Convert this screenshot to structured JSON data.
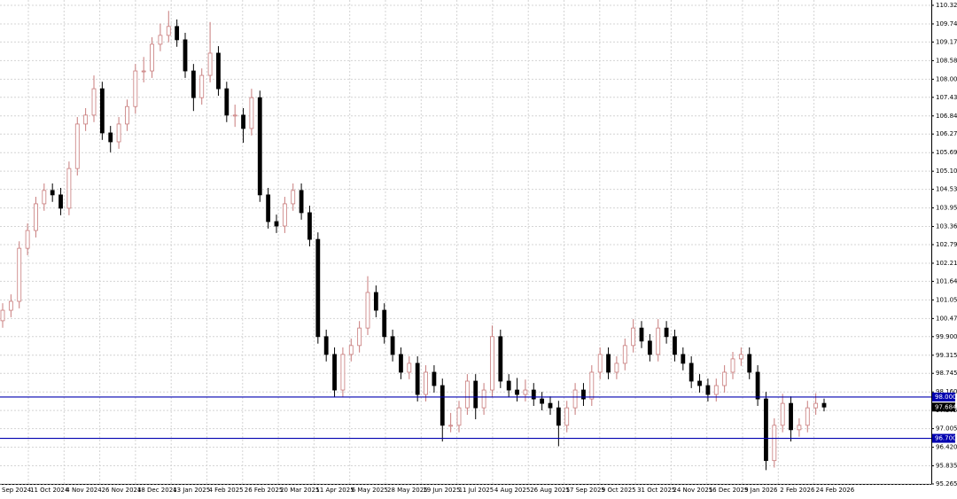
{
  "chart_data": {
    "type": "candlestick",
    "up_color": "#c87b7b",
    "down_color": "#000000",
    "grid": true,
    "ylim": [
      95.265,
      110.325
    ],
    "yticks": [
      110.325,
      {
        "value": 109.74,
        "label": "109.740"
      },
      {
        "value": 109.17,
        "label": "109.170"
      },
      108.585,
      {
        "value": 108,
        "label": "108.000"
      },
      {
        "value": 107.43,
        "label": "107.430"
      },
      106.845,
      106.275,
      {
        "value": 105.69,
        "label": "105.690"
      },
      105.105,
      104.535,
      {
        "value": 103.95,
        "label": "103.950"
      },
      103.365,
      102.795,
      {
        "value": 102.21,
        "label": "102.210"
      },
      {
        "value": 101.64,
        "label": "101.640"
      },
      101.055,
      {
        "value": 100.47,
        "label": "100.470"
      },
      {
        "value": 99.9,
        "label": "99.900"
      },
      99.315,
      98.745,
      {
        "value": 98.16,
        "label": "98.160"
      },
      97.575,
      97.005,
      {
        "value": 96.42,
        "label": "96.420"
      },
      95.835,
      95.265
    ],
    "xlabels": [
      "Sep 2024",
      "11 Oct 2024",
      "4 Nov 2024",
      "26 Nov 2024",
      "18 Dec 2024",
      "13 Jan 2025",
      "4 Feb 2025",
      "26 Feb 2025",
      "20 Mar 2025",
      "11 Apr 2025",
      "6 May 2025",
      "28 May 2025",
      "19 Jun 2025",
      "11 Jul 2025",
      "4 Aug 2025",
      "26 Aug 2025",
      "17 Sep 2025",
      "9 Oct 2025",
      "31 Oct 2025",
      "24 Nov 2025",
      "16 Dec 2025",
      "9 Jan 2026",
      "2 Feb 2026",
      "24 Feb 2026"
    ],
    "hlines": [
      {
        "value": 98,
        "label": "98.000",
        "color": "#0000b0"
      },
      {
        "value": 96.7,
        "label": "96.700",
        "color": "#0000b0"
      }
    ],
    "current_price": {
      "value": 97.684,
      "label": "97.684",
      "color": "#000000"
    },
    "open": [
      100.4,
      100.73,
      101.01,
      102.68,
      103.24,
      104.08,
      104.5,
      104.36,
      103.94,
      105.19,
      106.59,
      106.87,
      107.7,
      106.31,
      106.03,
      106.59,
      107.14,
      108.26,
      108.26,
      109.1,
      109.38,
      109.66,
      109.24,
      108.26,
      107.42,
      108.12,
      108.82,
      107.7,
      106.87,
      106.87,
      106.45,
      107.42,
      104.36,
      103.52,
      103.38,
      104.08,
      104.5,
      103.8,
      102.96,
      99.9,
      99.34,
      98.22,
      99.34,
      99.62,
      100.17,
      101.29,
      100.73,
      99.9,
      99.34,
      98.78,
      99.06,
      98.08,
      98.78,
      98.36,
      97.11,
      97.11,
      97.66,
      98.5,
      97.66,
      98.22,
      99.9,
      98.5,
      98.22,
      98.08,
      98.22,
      97.94,
      97.8,
      97.66,
      97.11,
      97.66,
      98.22,
      97.94,
      98.78,
      99.34,
      98.78,
      99.06,
      99.62,
      100.17,
      99.76,
      99.34,
      100.17,
      99.9,
      99.34,
      99.06,
      98.5,
      98.36,
      98.08,
      98.36,
      98.78,
      99.2,
      99.34,
      98.78,
      97.94,
      96.0,
      97.11,
      97.8,
      96.97,
      97.11,
      97.66,
      97.8
    ],
    "high": [
      100.95,
      101.23,
      102.9,
      103.46,
      104.3,
      104.72,
      104.72,
      104.58,
      105.41,
      106.81,
      107.09,
      108.12,
      107.92,
      106.53,
      106.81,
      107.36,
      108.48,
      108.7,
      109.32,
      109.75,
      110.15,
      109.88,
      109.46,
      108.48,
      108.34,
      109.8,
      109.04,
      107.92,
      107.2,
      107.09,
      107.7,
      107.64,
      104.58,
      103.74,
      104.3,
      104.72,
      104.72,
      104.02,
      103.18,
      100.12,
      99.56,
      99.56,
      99.84,
      100.39,
      101.8,
      101.51,
      100.95,
      100.12,
      99.56,
      99.28,
      99.28,
      99.0,
      99.0,
      98.58,
      97.5,
      97.88,
      98.72,
      98.72,
      98.44,
      100.25,
      100.12,
      98.72,
      98.6,
      98.55,
      98.44,
      98.16,
      98.02,
      97.88,
      97.88,
      98.44,
      98.44,
      99.0,
      99.56,
      99.56,
      99.28,
      99.84,
      100.45,
      100.39,
      99.98,
      100.45,
      100.39,
      100.12,
      99.56,
      99.28,
      98.72,
      98.58,
      98.58,
      99.0,
      99.42,
      99.56,
      99.56,
      99.0,
      98.16,
      97.33,
      98.1,
      98.02,
      97.33,
      97.88,
      98.12,
      97.95
    ],
    "low": [
      100.18,
      100.51,
      100.79,
      102.46,
      103.02,
      103.86,
      104.14,
      103.72,
      103.72,
      104.97,
      106.37,
      106.65,
      106.09,
      105.7,
      105.81,
      106.37,
      106.92,
      107.9,
      108.04,
      108.88,
      109.16,
      109.02,
      108.04,
      107.0,
      107.2,
      107.9,
      107.48,
      106.65,
      106.5,
      106.0,
      106.23,
      104.14,
      103.3,
      103.16,
      103.16,
      103.86,
      103.58,
      102.74,
      99.68,
      99.12,
      98.0,
      98.0,
      99.12,
      99.4,
      99.95,
      100.51,
      99.68,
      99.12,
      98.56,
      98.56,
      97.86,
      97.86,
      98.14,
      96.6,
      96.89,
      96.89,
      97.44,
      97.3,
      97.44,
      98.0,
      98.28,
      98.0,
      97.86,
      97.86,
      97.72,
      97.58,
      97.44,
      96.45,
      96.89,
      97.44,
      97.72,
      97.72,
      98.56,
      98.56,
      98.56,
      98.84,
      99.4,
      99.54,
      99.12,
      99.12,
      99.68,
      99.12,
      98.84,
      98.28,
      98.14,
      97.86,
      97.86,
      98.14,
      98.56,
      98.98,
      98.56,
      97.72,
      95.7,
      95.78,
      96.89,
      96.6,
      96.75,
      96.89,
      97.44,
      97.55
    ],
    "close": [
      100.73,
      101.01,
      102.68,
      103.24,
      104.08,
      104.5,
      104.36,
      103.94,
      105.19,
      106.59,
      106.87,
      107.7,
      106.31,
      106.03,
      106.59,
      107.14,
      108.26,
      108.26,
      109.1,
      109.38,
      109.66,
      109.24,
      108.26,
      107.42,
      108.12,
      108.82,
      107.7,
      106.87,
      106.87,
      106.45,
      107.42,
      104.36,
      103.52,
      103.38,
      104.08,
      104.5,
      103.8,
      102.96,
      99.9,
      99.34,
      98.22,
      99.34,
      99.62,
      100.17,
      101.29,
      100.73,
      99.9,
      99.34,
      98.78,
      99.06,
      98.08,
      98.78,
      98.36,
      97.11,
      97.11,
      97.66,
      98.5,
      97.66,
      98.22,
      99.9,
      98.5,
      98.22,
      98.08,
      98.22,
      97.94,
      97.8,
      97.66,
      97.11,
      97.66,
      98.22,
      97.94,
      98.78,
      99.34,
      98.78,
      99.06,
      99.62,
      100.17,
      99.76,
      99.34,
      100.17,
      99.9,
      99.34,
      99.06,
      98.5,
      98.36,
      98.08,
      98.36,
      98.78,
      99.2,
      99.34,
      98.78,
      97.94,
      96.0,
      97.11,
      97.8,
      96.97,
      97.11,
      97.66,
      97.8,
      97.684
    ]
  }
}
